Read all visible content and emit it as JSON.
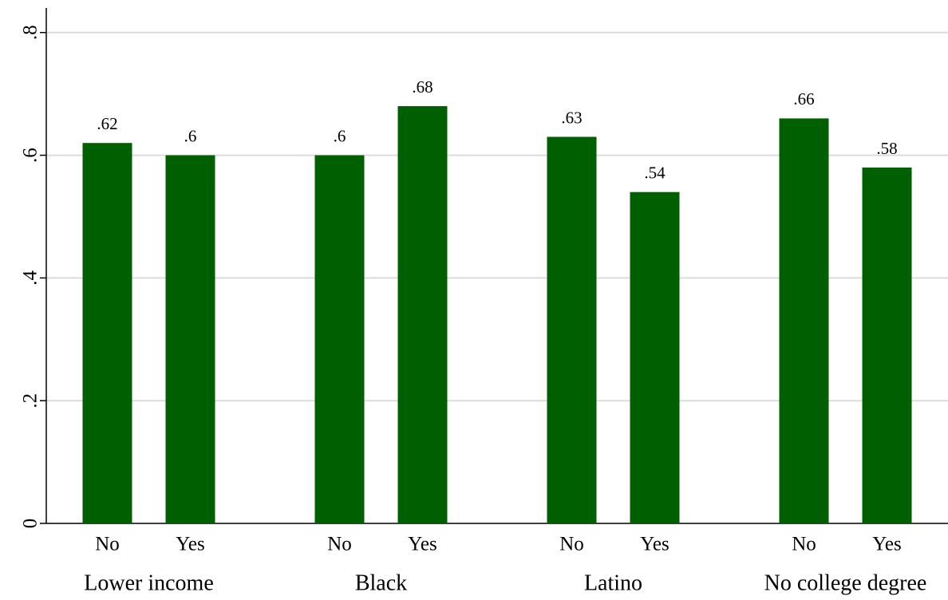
{
  "chart_data": {
    "type": "grouped-bar",
    "groups": [
      {
        "name": "Lower income",
        "categories": [
          "No",
          "Yes"
        ],
        "values": [
          0.62,
          0.6
        ],
        "value_labels": [
          ".62",
          ".6"
        ]
      },
      {
        "name": "Black",
        "categories": [
          "No",
          "Yes"
        ],
        "values": [
          0.6,
          0.68
        ],
        "value_labels": [
          ".6",
          ".68"
        ]
      },
      {
        "name": "Latino",
        "categories": [
          "No",
          "Yes"
        ],
        "values": [
          0.63,
          0.54
        ],
        "value_labels": [
          ".63",
          ".54"
        ]
      },
      {
        "name": "No college degree",
        "categories": [
          "No",
          "Yes"
        ],
        "values": [
          0.66,
          0.58
        ],
        "value_labels": [
          ".66",
          ".58"
        ]
      }
    ],
    "color": "#005f00",
    "ylim": [
      0,
      0.84
    ],
    "yticks": [
      0,
      {
        "value": 0.2,
        "label": ".2"
      },
      {
        "value": 0.4,
        "label": ".4"
      },
      {
        "value": 0.6,
        "label": ".6"
      },
      {
        "value": 0.8,
        "label": ".8"
      }
    ],
    "grid": true
  }
}
